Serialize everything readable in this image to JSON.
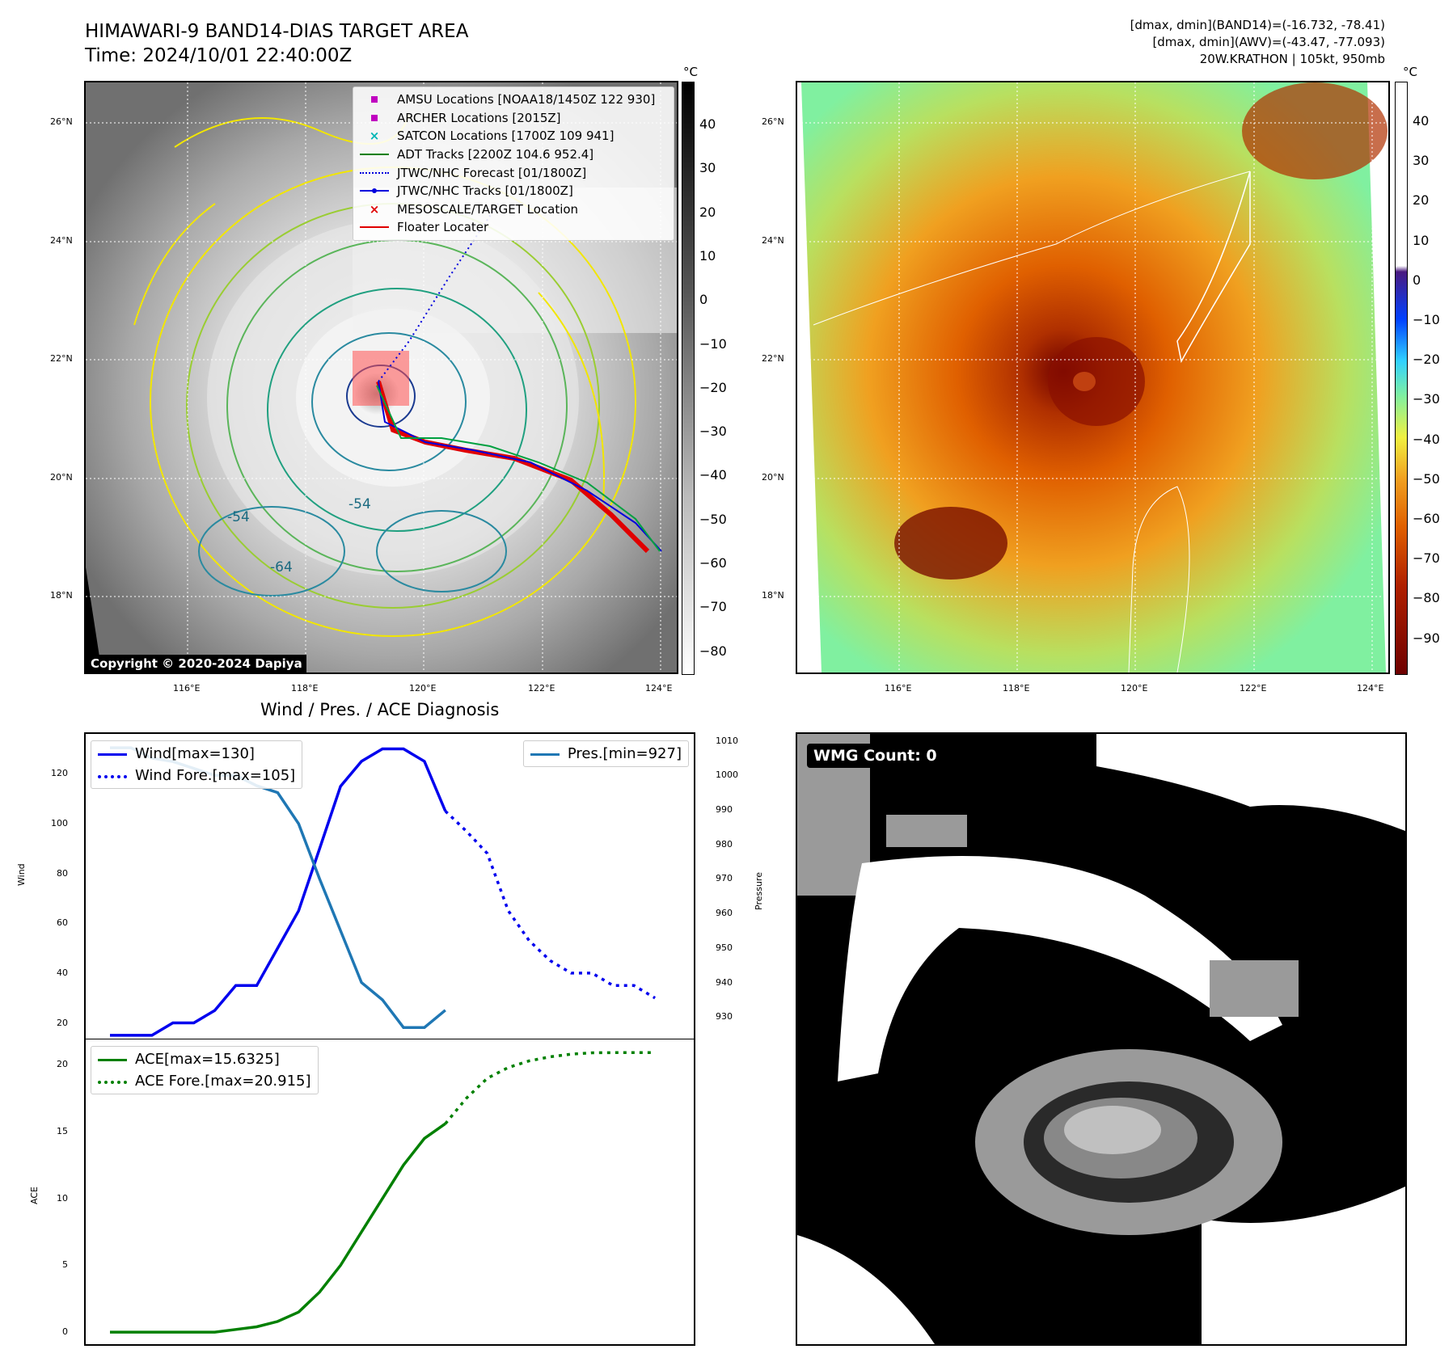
{
  "header": {
    "title_line1": "HIMAWARI-9 BAND14-DIAS TARGET AREA",
    "title_line2": "Time: 2024/10/01 22:40:00Z",
    "stats_line1": "[dmax, dmin](BAND14)=(-16.732, -78.41)",
    "stats_line2": "[dmax, dmin](AWV)=(-43.47, -77.093)",
    "stats_line3": "20W.KRATHON | 105kt, 950mb"
  },
  "map_axes": {
    "lat_ticks": [
      "26°N",
      "24°N",
      "22°N",
      "20°N",
      "18°N"
    ],
    "lon_ticks": [
      "116°E",
      "118°E",
      "120°E",
      "122°E",
      "124°E"
    ]
  },
  "map_legend": {
    "items": [
      {
        "label": "AMSU Locations [NOAA18/1450Z 122 930]",
        "color": "#c000c0"
      },
      {
        "label": "ARCHER Locations [2015Z]",
        "color": "#c000c0"
      },
      {
        "label": "SATCON Locations [1700Z 109 941]",
        "color": "#00b5b5"
      },
      {
        "label": "ADT Tracks [2200Z 104.6 952.4]",
        "color": "#008000"
      },
      {
        "label": "JTWC/NHC Forecast [01/1800Z]",
        "color": "#0000dd"
      },
      {
        "label": "JTWC/NHC Tracks [01/1800Z]",
        "color": "#0000dd"
      },
      {
        "label": "MESOSCALE/TARGET Location",
        "color": "#e00000"
      },
      {
        "label": "Floater Locater",
        "color": "#e00000"
      }
    ]
  },
  "contour_labels": [
    "-54",
    "-54",
    "-64"
  ],
  "copyright": "Copyright © 2020-2024 Dapiya",
  "colorbar_gray": {
    "unit": "°C",
    "ticks": [
      "40",
      "30",
      "20",
      "10",
      "0",
      "−10",
      "−20",
      "−30",
      "−40",
      "−50",
      "−60",
      "−70",
      "−80"
    ]
  },
  "colorbar_color": {
    "unit": "°C",
    "ticks": [
      "40",
      "30",
      "20",
      "10",
      "0",
      "−10",
      "−20",
      "−30",
      "−40",
      "−50",
      "−60",
      "−70",
      "−80",
      "−90"
    ]
  },
  "colors": {
    "wind": "#0000ee",
    "pressure": "#1f77b4",
    "ace": "#008000"
  },
  "diagnosis": {
    "title": "Wind / Pres. / ACE Diagnosis",
    "wind_ylabel": "Wind",
    "pressure_ylabel": "Pressure",
    "ace_ylabel": "ACE",
    "wind_legend": [
      "Wind[max=130]",
      "Wind Fore.[max=105]"
    ],
    "pres_legend": [
      "Pres.[min=927]"
    ],
    "ace_legend": [
      "ACE[max=15.6325]",
      "ACE Fore.[max=20.915]"
    ],
    "wind_ticks": [
      "120",
      "100",
      "80",
      "60",
      "40",
      "20"
    ],
    "pres_ticks": [
      "1010",
      "1000",
      "990",
      "980",
      "970",
      "960",
      "950",
      "940",
      "930"
    ],
    "ace_ticks": [
      "20",
      "15",
      "10",
      "5",
      "0"
    ]
  },
  "wmg": {
    "label": "WMG Count: 0"
  },
  "chart_data": [
    {
      "type": "line",
      "title": "Wind / Pres. / ACE Diagnosis",
      "ylabel": "Wind",
      "ylim": [
        14,
        136
      ],
      "series": [
        {
          "name": "Wind[max=130]",
          "x": [
            0,
            1,
            2,
            3,
            4,
            5,
            6,
            7,
            8,
            9,
            10,
            11,
            12,
            13,
            14,
            15,
            16
          ],
          "values": [
            15,
            15,
            15,
            20,
            20,
            25,
            35,
            35,
            50,
            65,
            90,
            115,
            125,
            130,
            130,
            125,
            105
          ]
        },
        {
          "name": "Wind Fore.[max=105]",
          "x": [
            16,
            17,
            18,
            19,
            20,
            21,
            22,
            23,
            24,
            25,
            26
          ],
          "values": [
            105,
            97,
            88,
            65,
            53,
            45,
            40,
            40,
            35,
            35,
            30
          ]
        }
      ]
    },
    {
      "type": "line",
      "ylabel": "Pressure",
      "ylim": [
        924,
        1012
      ],
      "series": [
        {
          "name": "Pres.[min=927]",
          "x": [
            0,
            1,
            2,
            3,
            4,
            5,
            6,
            7,
            8,
            9,
            10,
            11,
            12,
            13,
            14,
            15,
            16
          ],
          "values": [
            1008,
            1008,
            1005,
            1004,
            1002,
            1000,
            1000,
            997,
            995,
            986,
            970,
            955,
            940,
            935,
            927,
            927,
            932
          ]
        }
      ]
    },
    {
      "type": "line",
      "ylabel": "ACE",
      "ylim": [
        -0.9,
        21.9
      ],
      "series": [
        {
          "name": "ACE[max=15.6325]",
          "x": [
            0,
            1,
            2,
            3,
            4,
            5,
            6,
            7,
            8,
            9,
            10,
            11,
            12,
            13,
            14,
            15,
            16
          ],
          "values": [
            0,
            0,
            0,
            0,
            0,
            0,
            0.2,
            0.4,
            0.8,
            1.5,
            3,
            5,
            7.5,
            10,
            12.5,
            14.5,
            15.6
          ]
        },
        {
          "name": "ACE Fore.[max=20.915]",
          "x": [
            16,
            17,
            18,
            19,
            20,
            21,
            22,
            23,
            24,
            25,
            26
          ],
          "values": [
            15.6,
            17.5,
            19,
            19.8,
            20.3,
            20.6,
            20.8,
            20.9,
            20.915,
            20.915,
            20.915
          ]
        }
      ]
    }
  ]
}
